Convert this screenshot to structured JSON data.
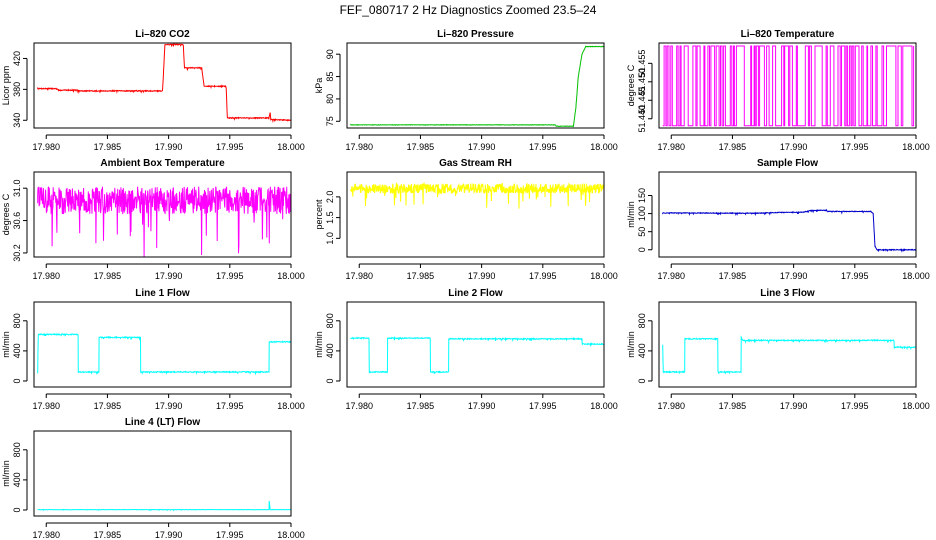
{
  "figure": {
    "title": "FEF_080717  2 Hz Diagnostics Zoomed 23.5–24"
  },
  "chart_data": [
    {
      "type": "line",
      "title": "Li–820 CO2",
      "xlabel": "",
      "ylabel": "Licor ppm",
      "color": "#ff0000",
      "xlim": [
        17.979,
        18.0
      ],
      "ylim": [
        330,
        440
      ],
      "x_ticks": [
        "17.980",
        "17.985",
        "17.990",
        "17.995",
        "18.000"
      ],
      "x_tick_values": [
        17.98,
        17.985,
        17.99,
        17.995,
        18.0
      ],
      "y_ticks": [
        "340",
        "380",
        "420"
      ],
      "y_tick_values": [
        340,
        380,
        420
      ],
      "series": [
        {
          "noise": 0.6,
          "points": [
            [
              17.9793,
              381
            ],
            [
              17.9808,
              381
            ],
            [
              17.981,
              379
            ],
            [
              17.9825,
              379
            ],
            [
              17.9827,
              378
            ],
            [
              17.9895,
              378
            ],
            [
              17.9897,
              438
            ],
            [
              17.9912,
              438
            ],
            [
              17.9913,
              408
            ],
            [
              17.9927,
              408
            ],
            [
              17.9929,
              384
            ],
            [
              17.9947,
              384
            ],
            [
              17.9948,
              343
            ],
            [
              17.9982,
              343
            ],
            [
              17.9983,
              350
            ],
            [
              17.99835,
              341
            ],
            [
              18.0,
              340
            ]
          ]
        }
      ]
    },
    {
      "type": "line",
      "title": "Li–820 Pressure",
      "xlabel": "",
      "ylabel": "kPa",
      "color": "#00c000",
      "xlim": [
        17.979,
        18.0
      ],
      "ylim": [
        73.5,
        92.5
      ],
      "x_ticks": [
        "17.980",
        "17.985",
        "17.990",
        "17.995",
        "18.000"
      ],
      "x_tick_values": [
        17.98,
        17.985,
        17.99,
        17.995,
        18.0
      ],
      "y_ticks": [
        "75",
        "80",
        "85",
        "90"
      ],
      "y_tick_values": [
        75,
        80,
        85,
        90
      ],
      "series": [
        {
          "noise": 0.05,
          "points": [
            [
              17.9793,
              74.2
            ],
            [
              17.996,
              74.2
            ],
            [
              17.9961,
              73.9
            ],
            [
              17.9975,
              73.9
            ],
            [
              17.9977,
              78.0
            ],
            [
              17.9979,
              85.0
            ],
            [
              17.9982,
              90.0
            ],
            [
              17.9985,
              91.7
            ],
            [
              18.0,
              91.7
            ]
          ]
        }
      ]
    },
    {
      "type": "line",
      "title": "Li–820 Temperature",
      "xlabel": "",
      "ylabel": "degrees C",
      "color": "#ff00ff",
      "xlim": [
        17.979,
        18.0
      ],
      "ylim": [
        51.4375,
        51.4605
      ],
      "x_ticks": [
        "17.980",
        "17.985",
        "17.990",
        "17.995",
        "18.000"
      ],
      "x_tick_values": [
        17.98,
        17.985,
        17.99,
        17.995,
        18.0
      ],
      "y_ticks": [
        "51.440",
        "51.445",
        "51.450",
        "51.455"
      ],
      "y_tick_values": [
        51.44,
        51.445,
        51.45,
        51.455
      ],
      "levels": [
        51.4381,
        51.4597
      ],
      "toggle_density": 160,
      "series": []
    },
    {
      "type": "line",
      "title": "Ambient Box Temperature",
      "xlabel": "",
      "ylabel": "degrees C",
      "color": "#ff00ff",
      "xlim": [
        17.979,
        18.0
      ],
      "ylim": [
        30.15,
        31.2
      ],
      "x_ticks": [
        "17.980",
        "17.985",
        "17.990",
        "17.995",
        "18.000"
      ],
      "x_tick_values": [
        17.98,
        17.985,
        17.99,
        17.995,
        18.0
      ],
      "y_ticks": [
        "30.2",
        "30.6",
        "31.0"
      ],
      "y_tick_values": [
        30.2,
        30.6,
        31.0
      ],
      "series": [
        {
          "noise": 0.17,
          "points": [
            [
              17.9793,
              30.85
            ],
            [
              18.0,
              30.85
            ]
          ]
        }
      ]
    },
    {
      "type": "line",
      "title": "Gas Stream RH",
      "xlabel": "",
      "ylabel": "percent",
      "color": "#ffff00",
      "xlim": [
        17.979,
        18.0
      ],
      "ylim": [
        0.55,
        2.6
      ],
      "x_ticks": [
        "17.980",
        "17.985",
        "17.990",
        "17.995",
        "18.000"
      ],
      "x_tick_values": [
        17.98,
        17.985,
        17.99,
        17.995,
        18.0
      ],
      "y_ticks": [
        "1.0",
        "1.5",
        "2.0"
      ],
      "y_tick_values": [
        1.0,
        1.5,
        2.0
      ],
      "series": [
        {
          "noise": 0.12,
          "points": [
            [
              17.9793,
              2.2
            ],
            [
              18.0,
              2.2
            ]
          ]
        }
      ]
    },
    {
      "type": "line",
      "title": "Sample Flow",
      "xlabel": "",
      "ylabel": "ml/min",
      "color": "#0000cc",
      "xlim": [
        17.979,
        18.0
      ],
      "ylim": [
        -20,
        215
      ],
      "x_ticks": [
        "17.980",
        "17.985",
        "17.990",
        "17.995",
        "18.000"
      ],
      "x_tick_values": [
        17.98,
        17.985,
        17.99,
        17.995,
        18.0
      ],
      "y_ticks": [
        "0",
        "50",
        "100",
        "150"
      ],
      "y_tick_values": [
        0,
        50,
        100,
        150
      ],
      "series": [
        {
          "noise": 1.0,
          "points": [
            [
              17.9793,
              102
            ],
            [
              17.987,
              101
            ],
            [
              17.9885,
              103
            ],
            [
              17.9908,
              104
            ],
            [
              17.9915,
              109
            ],
            [
              17.9927,
              109
            ],
            [
              17.9928,
              106
            ],
            [
              17.9963,
              106
            ],
            [
              17.9965,
              100
            ],
            [
              17.99665,
              10
            ],
            [
              17.9968,
              0
            ],
            [
              18.0,
              0
            ]
          ]
        }
      ]
    },
    {
      "type": "line",
      "title": "Line 1 Flow",
      "xlabel": "",
      "ylabel": "ml/min",
      "color": "#00ffff",
      "xlim": [
        17.979,
        18.0
      ],
      "ylim": [
        -80,
        1050
      ],
      "x_ticks": [
        "17.980",
        "17.985",
        "17.990",
        "17.995",
        "18.000"
      ],
      "x_tick_values": [
        17.98,
        17.985,
        17.99,
        17.995,
        18.0
      ],
      "y_ticks": [
        "0",
        "400",
        "800"
      ],
      "y_tick_values": [
        0,
        400,
        800
      ],
      "series": [
        {
          "noise": 6,
          "points": [
            [
              17.9793,
              120
            ],
            [
              17.97935,
              620
            ],
            [
              17.9826,
              620
            ],
            [
              17.98262,
              120
            ],
            [
              17.9843,
              120
            ],
            [
              17.98432,
              580
            ],
            [
              17.9877,
              580
            ],
            [
              17.98772,
              120
            ],
            [
              17.9982,
              120
            ],
            [
              17.99822,
              520
            ],
            [
              18.0,
              520
            ]
          ]
        }
      ]
    },
    {
      "type": "line",
      "title": "Line 2 Flow",
      "xlabel": "",
      "ylabel": "ml/min",
      "color": "#00ffff",
      "xlim": [
        17.979,
        18.0
      ],
      "ylim": [
        -80,
        1050
      ],
      "x_ticks": [
        "17.980",
        "17.985",
        "17.990",
        "17.995",
        "18.000"
      ],
      "x_tick_values": [
        17.98,
        17.985,
        17.99,
        17.995,
        18.0
      ],
      "y_ticks": [
        "0",
        "400",
        "800"
      ],
      "y_tick_values": [
        0,
        400,
        800
      ],
      "series": [
        {
          "noise": 6,
          "points": [
            [
              17.9793,
              570
            ],
            [
              17.9808,
              570
            ],
            [
              17.98082,
              120
            ],
            [
              17.9823,
              120
            ],
            [
              17.98232,
              570
            ],
            [
              17.9858,
              570
            ],
            [
              17.98582,
              120
            ],
            [
              17.9873,
              120
            ],
            [
              17.98732,
              560
            ],
            [
              17.9982,
              560
            ],
            [
              17.99822,
              490
            ],
            [
              18.0,
              490
            ]
          ]
        }
      ]
    },
    {
      "type": "line",
      "title": "Line 3 Flow",
      "xlabel": "",
      "ylabel": "ml/min",
      "color": "#00ffff",
      "xlim": [
        17.979,
        18.0
      ],
      "ylim": [
        -80,
        1050
      ],
      "x_ticks": [
        "17.980",
        "17.985",
        "17.990",
        "17.995",
        "18.000"
      ],
      "x_tick_values": [
        17.98,
        17.985,
        17.99,
        17.995,
        18.0
      ],
      "y_ticks": [
        "0",
        "400",
        "800"
      ],
      "y_tick_values": [
        0,
        400,
        800
      ],
      "series": [
        {
          "noise": 6,
          "points": [
            [
              17.9793,
              480
            ],
            [
              17.97935,
              120
            ],
            [
              17.9811,
              120
            ],
            [
              17.98112,
              560
            ],
            [
              17.9838,
              560
            ],
            [
              17.98382,
              120
            ],
            [
              17.9857,
              120
            ],
            [
              17.98572,
              580
            ],
            [
              17.98585,
              540
            ],
            [
              17.9982,
              540
            ],
            [
              17.99822,
              450
            ],
            [
              18.0,
              450
            ]
          ]
        }
      ]
    },
    {
      "type": "line",
      "title": "Line 4 (LT) Flow",
      "xlabel": "",
      "ylabel": "ml/min",
      "color": "#00ffff",
      "xlim": [
        17.979,
        18.0
      ],
      "ylim": [
        -80,
        1050
      ],
      "x_ticks": [
        "17.980",
        "17.985",
        "17.990",
        "17.995",
        "18.000"
      ],
      "x_tick_values": [
        17.98,
        17.985,
        17.99,
        17.995,
        18.0
      ],
      "y_ticks": [
        "0",
        "400",
        "800"
      ],
      "y_tick_values": [
        0,
        400,
        800
      ],
      "series": [
        {
          "noise": 2,
          "points": [
            [
              17.9793,
              5
            ],
            [
              17.9982,
              5
            ],
            [
              17.99822,
              120
            ],
            [
              17.9983,
              5
            ],
            [
              18.0,
              5
            ]
          ]
        }
      ]
    }
  ]
}
